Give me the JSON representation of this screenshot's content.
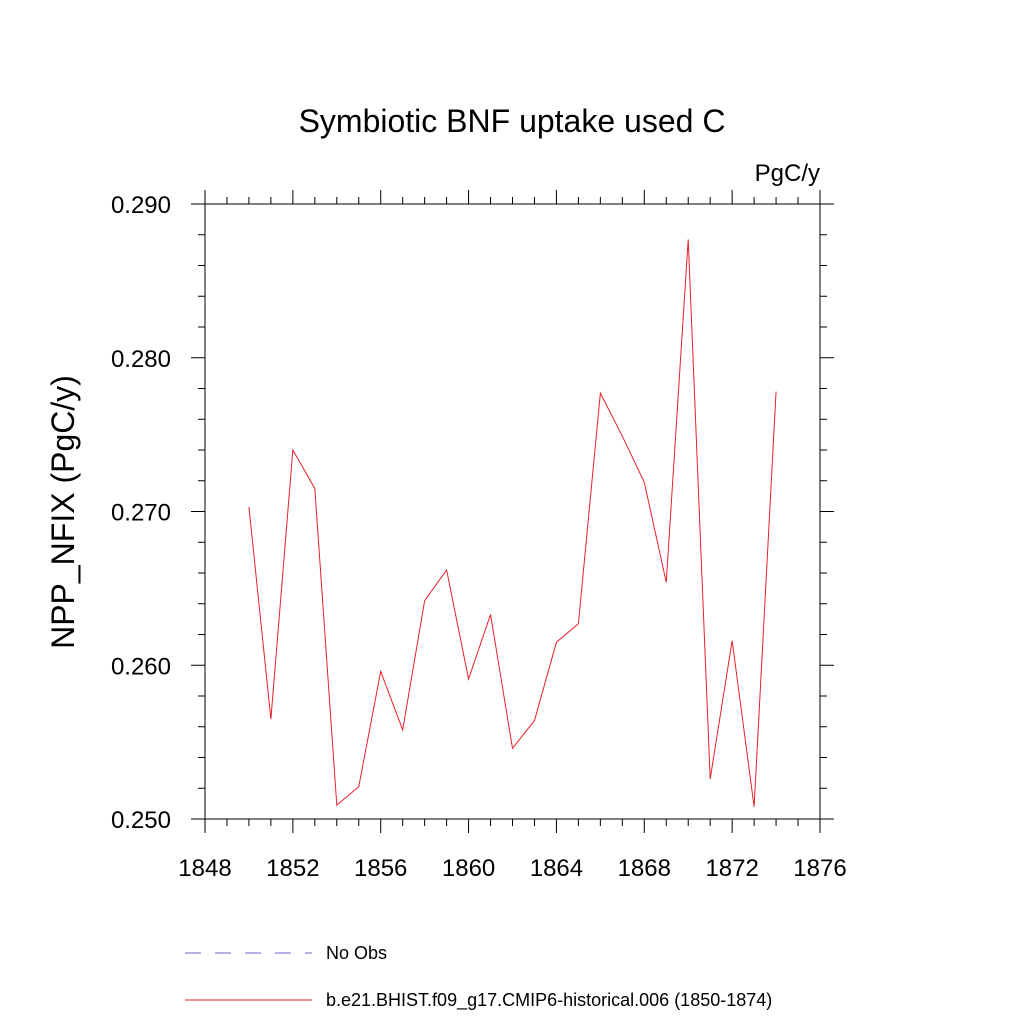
{
  "chart_data": {
    "type": "line",
    "title": "Symbiotic BNF uptake used C",
    "units_label": "PgC/y",
    "xlabel": "",
    "ylabel": "NPP_NFIX  (PgC/y)",
    "xlim": [
      1848,
      1876
    ],
    "ylim": [
      0.25,
      0.29
    ],
    "x_ticks": [
      1848,
      1852,
      1856,
      1860,
      1864,
      1868,
      1872,
      1876
    ],
    "x_tick_labels": [
      "1848",
      "1852",
      "1856",
      "1860",
      "1864",
      "1868",
      "1872",
      "1876"
    ],
    "y_ticks": [
      0.25,
      0.26,
      0.27,
      0.28,
      0.29
    ],
    "y_tick_labels": [
      "0.250",
      "0.260",
      "0.270",
      "0.280",
      "0.290"
    ],
    "x_minor_step": 1,
    "y_minor_step": 0.002,
    "grid": false,
    "series": [
      {
        "name": "b.e21.BHIST.f09_g17.CMIP6-historical.006 (1850-1874)",
        "color": "#e8202a",
        "style": "solid",
        "x": [
          1850,
          1851,
          1852,
          1853,
          1854,
          1855,
          1856,
          1857,
          1858,
          1859,
          1860,
          1861,
          1862,
          1863,
          1864,
          1865,
          1866,
          1867,
          1868,
          1869,
          1870,
          1871,
          1872,
          1873,
          1874
        ],
        "y": [
          0.2703,
          0.2565,
          0.274,
          0.2715,
          0.2509,
          0.2521,
          0.2596,
          0.2558,
          0.2642,
          0.2662,
          0.2591,
          0.2633,
          0.2546,
          0.2564,
          0.2615,
          0.2627,
          0.2777,
          0.2749,
          0.2719,
          0.2654,
          0.2877,
          0.2526,
          0.2616,
          0.2508,
          0.2778
        ]
      }
    ],
    "legend": {
      "placement": "bottom",
      "entries": [
        {
          "label": "No Obs",
          "color": "#6a6ad0",
          "style": "dashed"
        },
        {
          "label": "b.e21.BHIST.f09_g17.CMIP6-historical.006 (1850-1874)",
          "color": "#e8202a",
          "style": "solid"
        }
      ]
    }
  }
}
